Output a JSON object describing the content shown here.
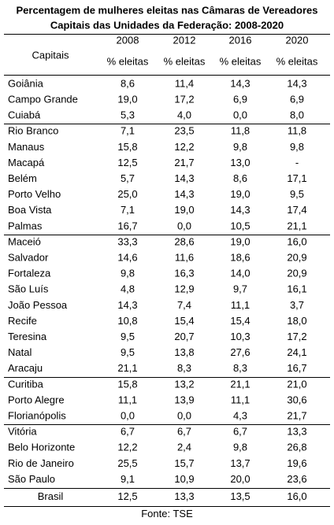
{
  "table": {
    "title": [
      "Percentagem de mulheres eleitas nas Câmaras de Vereadores",
      "Capitais das Unidades da Federação: 2008-2020"
    ],
    "header": {
      "first": "Capitais",
      "years": [
        "2008",
        "2012",
        "2016",
        "2020"
      ],
      "sub": [
        "% eleitas",
        "% eleitas",
        "% eleitas",
        "% eleitas"
      ]
    },
    "groups": [
      [
        [
          "Goiânia",
          "8,6",
          "11,4",
          "14,3",
          "14,3"
        ],
        [
          "Campo Grande",
          "19,0",
          "17,2",
          "6,9",
          "6,9"
        ],
        [
          "Cuiabá",
          "5,3",
          "4,0",
          "0,0",
          "8,0"
        ]
      ],
      [
        [
          "Rio Branco",
          "7,1",
          "23,5",
          "11,8",
          "11,8"
        ],
        [
          "Manaus",
          "15,8",
          "12,2",
          "9,8",
          "9,8"
        ],
        [
          "Macapá",
          "12,5",
          "21,7",
          "13,0",
          "-"
        ],
        [
          "Belém",
          "5,7",
          "14,3",
          "8,6",
          "17,1"
        ],
        [
          "Porto Velho",
          "25,0",
          "14,3",
          "19,0",
          "9,5"
        ],
        [
          "Boa Vista",
          "7,1",
          "19,0",
          "14,3",
          "17,4"
        ],
        [
          "Palmas",
          "16,7",
          "0,0",
          "10,5",
          "21,1"
        ]
      ],
      [
        [
          "Maceió",
          "33,3",
          "28,6",
          "19,0",
          "16,0"
        ],
        [
          "Salvador",
          "14,6",
          "11,6",
          "18,6",
          "20,9"
        ],
        [
          "Fortaleza",
          "9,8",
          "16,3",
          "14,0",
          "20,9"
        ],
        [
          "São Luís",
          "4,8",
          "12,9",
          "9,7",
          "16,1"
        ],
        [
          "João Pessoa",
          "14,3",
          "7,4",
          "11,1",
          "3,7"
        ],
        [
          "Recife",
          "10,8",
          "15,4",
          "15,4",
          "18,0"
        ],
        [
          "Teresina",
          "9,5",
          "20,7",
          "10,3",
          "17,2"
        ],
        [
          "Natal",
          "9,5",
          "13,8",
          "27,6",
          "24,1"
        ],
        [
          "Aracaju",
          "21,1",
          "8,3",
          "8,3",
          "16,7"
        ]
      ],
      [
        [
          "Curitiba",
          "15,8",
          "13,2",
          "21,1",
          "21,0"
        ],
        [
          "Porto Alegre",
          "11,1",
          "13,9",
          "11,1",
          "30,6"
        ],
        [
          "Florianópolis",
          "0,0",
          "0,0",
          "4,3",
          "21,7"
        ]
      ],
      [
        [
          "Vitória",
          "6,7",
          "6,7",
          "6,7",
          "13,3"
        ],
        [
          "Belo Horizonte",
          "12,2",
          "2,4",
          "9,8",
          "26,8"
        ],
        [
          "Rio de Janeiro",
          "25,5",
          "15,7",
          "13,7",
          "19,6"
        ],
        [
          "São Paulo",
          "9,1",
          "10,9",
          "20,0",
          "23,6"
        ]
      ]
    ],
    "total": [
      "Brasil",
      "12,5",
      "13,3",
      "13,5",
      "16,0"
    ],
    "source": "Fonte: TSE"
  }
}
